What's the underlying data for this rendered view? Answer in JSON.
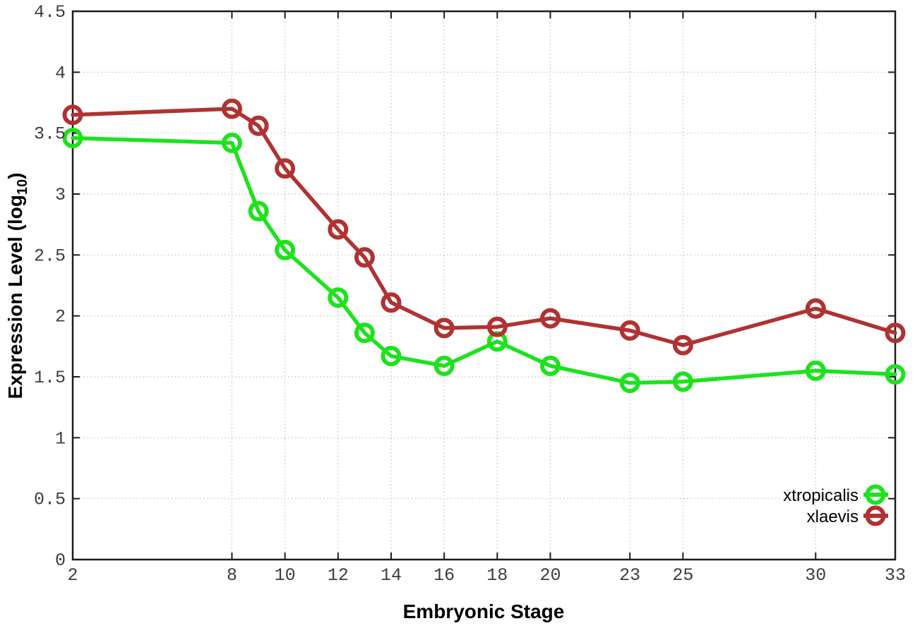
{
  "chart_data": {
    "type": "line",
    "title": "",
    "xlabel": "Embryonic Stage",
    "ylabel": "Expression Level (log10)",
    "ylabel_parts": {
      "pre": "Expression Level (log",
      "sub": "10",
      "post": ")"
    },
    "x": [
      2,
      8,
      9,
      10,
      12,
      13,
      14,
      16,
      18,
      20,
      23,
      25,
      30,
      33
    ],
    "series": [
      {
        "name": "xtropicalis",
        "color": "#1de21d",
        "values": [
          3.46,
          3.42,
          2.86,
          2.54,
          2.15,
          1.86,
          1.67,
          1.59,
          1.79,
          1.59,
          1.45,
          1.46,
          1.55,
          1.52
        ]
      },
      {
        "name": "xlaevis",
        "color": "#b03232",
        "values": [
          3.65,
          3.7,
          3.56,
          3.21,
          2.71,
          2.48,
          2.11,
          1.9,
          1.91,
          1.98,
          1.88,
          1.76,
          2.06,
          1.86
        ]
      }
    ],
    "xticks": [
      "2",
      "8",
      "10",
      "12",
      "14",
      "16",
      "18",
      "20",
      "23",
      "25",
      "30",
      "33"
    ],
    "xtick_values": [
      2,
      8,
      10,
      12,
      14,
      16,
      18,
      20,
      23,
      25,
      30,
      33
    ],
    "yticks": [
      "0",
      "0.5",
      "1",
      "1.5",
      "2",
      "2.5",
      "3",
      "3.5",
      "4",
      "4.5"
    ],
    "ytick_values": [
      0,
      0.5,
      1,
      1.5,
      2,
      2.5,
      3,
      3.5,
      4,
      4.5
    ],
    "xlim": [
      2,
      33
    ],
    "ylim": [
      0,
      4.5
    ],
    "grid": true,
    "legend_position": "bottom-right",
    "marker": "open-circle",
    "colors": {
      "grid": "#bdbdbd",
      "axis": "#1c1c1c",
      "tick_label": "#3d3d3d",
      "title": "#000000"
    }
  }
}
